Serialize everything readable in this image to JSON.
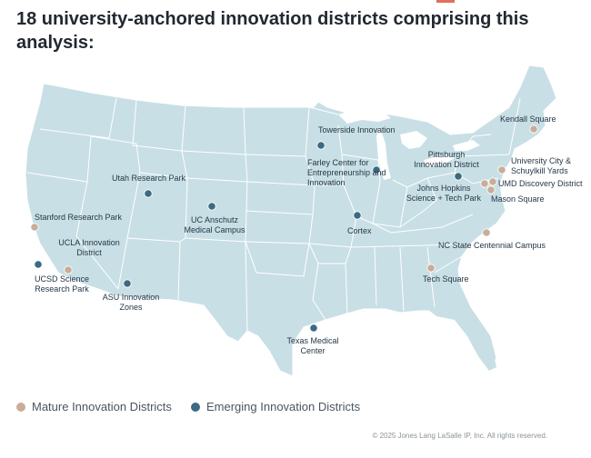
{
  "title": "18 university-anchored innovation districts comprising this analysis:",
  "colors": {
    "mature": "#c9ad98",
    "emerging": "#3b6a82",
    "land": "#c8dfe5",
    "border": "#ffffff"
  },
  "districts": [
    {
      "label": "Kendall Square",
      "type": "mature"
    },
    {
      "label": "Towerside Innovation",
      "type": "emerging"
    },
    {
      "label": "Farley Center for Entrepreneurship and Innovation",
      "type": "emerging"
    },
    {
      "label": "Pittsburgh Innovation District",
      "type": "emerging"
    },
    {
      "label": "University City & Schuylkill Yards",
      "type": "mature"
    },
    {
      "label": "UMD Discovery District",
      "type": "mature"
    },
    {
      "label": "Johns Hopkins Science + Tech Park",
      "type": "mature"
    },
    {
      "label": "Mason Square",
      "type": "mature"
    },
    {
      "label": "Utah Research Park",
      "type": "emerging"
    },
    {
      "label": "UC Anschutz Medical Campus",
      "type": "emerging"
    },
    {
      "label": "Stanford Research Park",
      "type": "mature"
    },
    {
      "label": "UCLA Innovation District",
      "type": "emerging"
    },
    {
      "label": "UCSD Science Research Park",
      "type": "mature"
    },
    {
      "label": "ASU Innovation Zones",
      "type": "emerging"
    },
    {
      "label": "Cortex",
      "type": "emerging"
    },
    {
      "label": "NC State Centennial Campus",
      "type": "mature"
    },
    {
      "label": "Tech Square",
      "type": "mature"
    },
    {
      "label": "Texas Medical Center",
      "type": "emerging"
    }
  ],
  "legend": {
    "mature_label": "Mature Innovation Districts",
    "emerging_label": "Emerging Innovation Districts"
  },
  "copyright": "© 2025 Jones Lang LaSalle IP, Inc. All rights reserved."
}
